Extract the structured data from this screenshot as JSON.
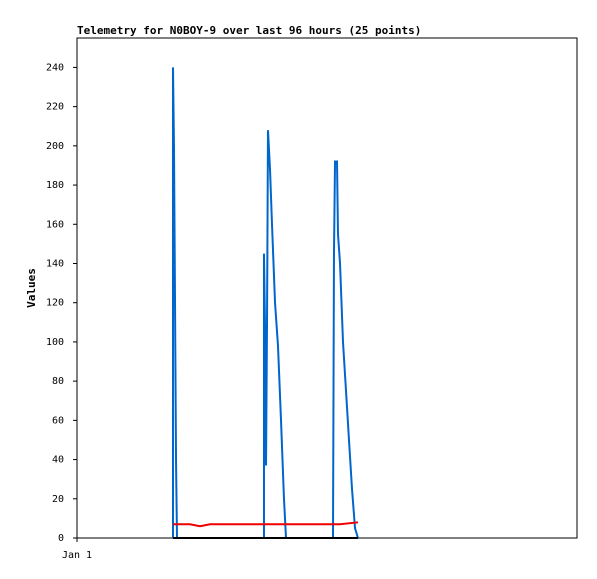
{
  "chart_data": {
    "type": "line",
    "title": "Telemetry for N0BOY-9 over last 96 hours (25 points)",
    "y_label": "Values",
    "xlim": [
      0,
      96
    ],
    "xticks": [
      {
        "value": 0,
        "label": "Jan 1"
      }
    ],
    "ylim": [
      0,
      255
    ],
    "yticks": [
      0,
      20,
      40,
      60,
      80,
      100,
      120,
      140,
      160,
      180,
      200,
      220,
      240
    ],
    "series": [
      {
        "color": "#0066cc",
        "x": [
          18.43,
          18.43,
          18.62,
          18.82,
          19.01,
          19.2,
          35.9,
          35.9,
          36.1,
          36.29,
          36.48,
          36.67,
          37.06,
          37.44,
          38.02,
          38.59,
          39.17,
          39.74,
          40.13,
          49.15,
          49.34,
          49.54,
          49.92,
          50.11,
          50.5,
          51.07,
          51.65,
          52.22,
          52.8,
          53.38,
          53.95
        ],
        "values": [
          0,
          240,
          200,
          120,
          40,
          0,
          0,
          145,
          108,
          37,
          108,
          208,
          188,
          160,
          120,
          98,
          60,
          20,
          0,
          0,
          145,
          192,
          192,
          155,
          140,
          100,
          75,
          50,
          25,
          5,
          0
        ]
      },
      {
        "color": "#ee0000",
        "x": [
          18.43,
          21.7,
          23.62,
          25.54,
          50.5,
          53.95
        ],
        "values": [
          7,
          7,
          6,
          7,
          7,
          8
        ]
      },
      {
        "color": "#000000",
        "x": [
          18.43,
          53.95
        ],
        "values": [
          0,
          0
        ]
      }
    ]
  }
}
